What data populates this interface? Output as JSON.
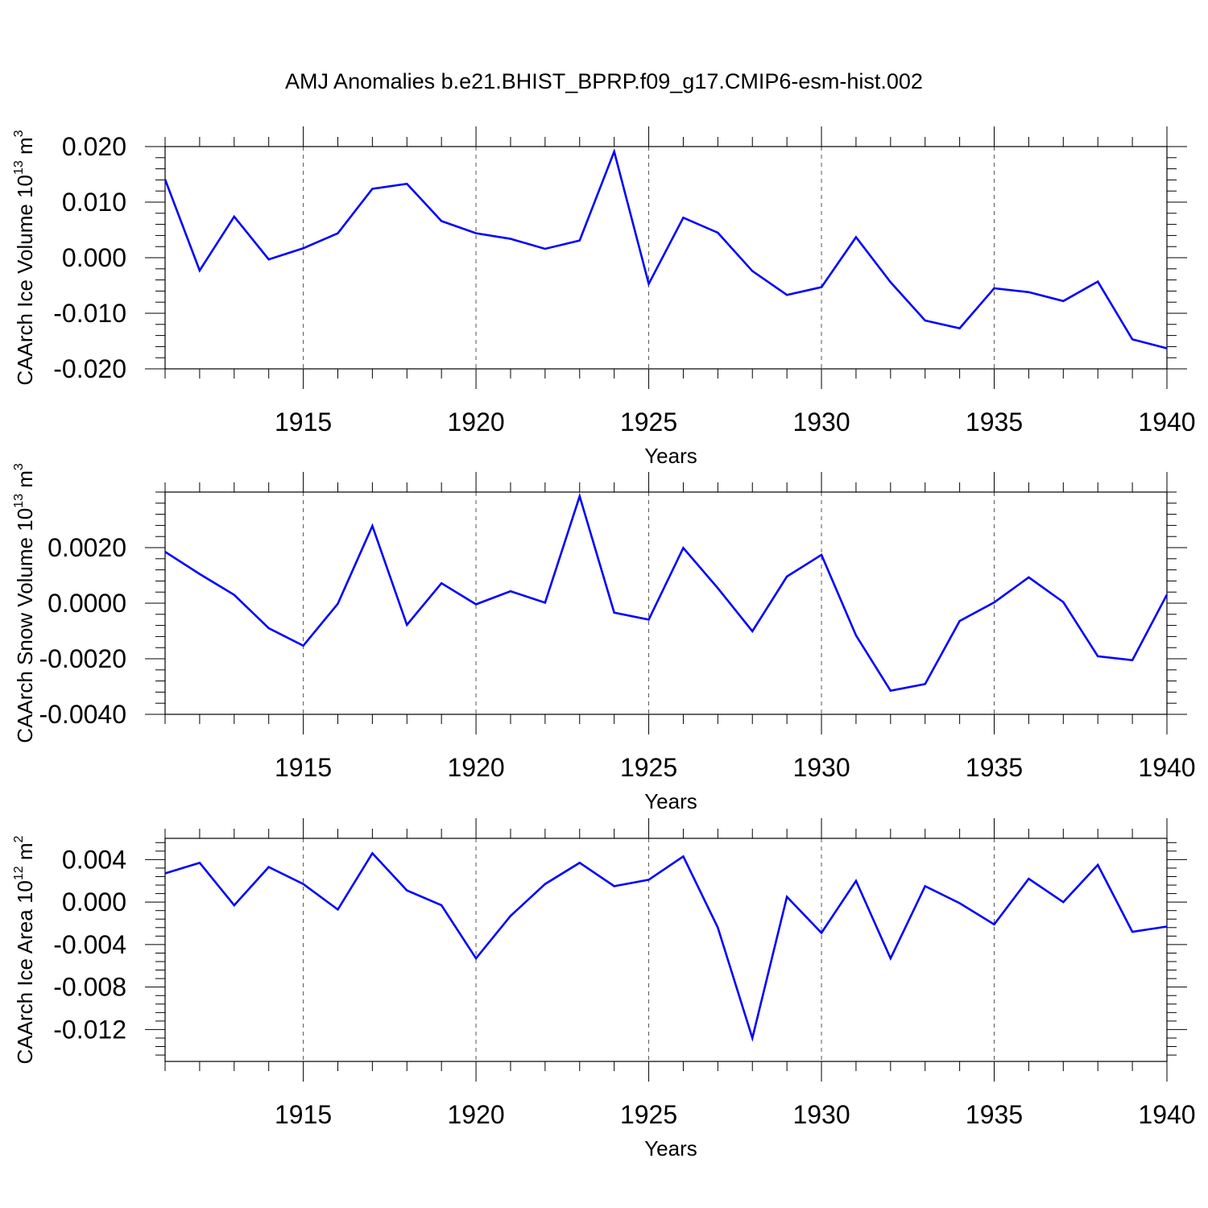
{
  "title": "AMJ Anomalies b.e21.BHIST_BPRP.f09_g17.CMIP6-esm-hist.002",
  "line_color": "#0000ff",
  "chart_data": [
    {
      "type": "line",
      "ylabel_main": "CAArch Ice Volume 10",
      "ylabel_exp": "13",
      "ylabel_unit": " m",
      "ylabel_unit_exp": "3",
      "xlabel": "Years",
      "xlim": [
        1911,
        1940
      ],
      "ylim": [
        -0.02,
        0.02
      ],
      "xticks": [
        "1915",
        "1920",
        "1925",
        "1930",
        "1935",
        "1940"
      ],
      "yticks": [
        "0.020",
        "0.010",
        "0.000",
        "-0.010",
        "-0.020"
      ],
      "grid": "vertical dashed at major x ticks",
      "series": [
        {
          "x": [
            1911,
            1912,
            1913,
            1914,
            1915,
            1916,
            1917,
            1918,
            1919,
            1920,
            1921,
            1922,
            1923,
            1924,
            1925,
            1926,
            1927,
            1928,
            1929,
            1930,
            1931,
            1932,
            1933,
            1934,
            1935,
            1936,
            1937,
            1938,
            1939,
            1940
          ],
          "values": [
            0.0141,
            -0.0023,
            0.0074,
            -0.0003,
            0.0017,
            0.0044,
            0.0124,
            0.0133,
            0.0066,
            0.0044,
            0.0034,
            0.0016,
            0.0031,
            0.0191,
            -0.0047,
            0.0072,
            0.0045,
            -0.0024,
            -0.0067,
            -0.0053,
            0.0037,
            -0.0044,
            -0.0113,
            -0.0127,
            -0.0055,
            -0.0062,
            -0.0078,
            -0.0043,
            -0.0147,
            -0.0163
          ]
        }
      ]
    },
    {
      "type": "line",
      "ylabel_main": "CAArch Snow Volume 10",
      "ylabel_exp": "13",
      "ylabel_unit": " m",
      "ylabel_unit_exp": "3",
      "xlabel": "Years",
      "xlim": [
        1911,
        1940
      ],
      "ylim": [
        -0.004,
        0.004
      ],
      "xticks": [
        "1915",
        "1920",
        "1925",
        "1930",
        "1935",
        "1940"
      ],
      "yticks": [
        "0.0020",
        "0.0000",
        "-0.0020",
        "-0.0040"
      ],
      "grid": "vertical dashed at major x ticks",
      "series": [
        {
          "x": [
            1911,
            1912,
            1913,
            1914,
            1915,
            1916,
            1917,
            1918,
            1919,
            1920,
            1921,
            1922,
            1923,
            1924,
            1925,
            1926,
            1927,
            1928,
            1929,
            1930,
            1931,
            1932,
            1933,
            1934,
            1935,
            1936,
            1937,
            1938,
            1939,
            1940
          ],
          "values": [
            0.00185,
            0.00105,
            0.0003,
            -0.0009,
            -0.00153,
            -2e-05,
            0.00278,
            -0.00078,
            0.00072,
            -4e-05,
            0.00043,
            2e-05,
            0.00385,
            -0.00034,
            -0.00059,
            0.00199,
            0.00054,
            -0.00101,
            0.00096,
            0.00174,
            -0.00116,
            -0.00315,
            -0.00291,
            -0.00064,
            3e-05,
            0.00093,
            4e-05,
            -0.00191,
            -0.00205,
            0.00031
          ]
        }
      ]
    },
    {
      "type": "line",
      "ylabel_main": "CAArch Ice Area 10",
      "ylabel_exp": "12",
      "ylabel_unit": " m",
      "ylabel_unit_exp": "2",
      "xlabel": "Years",
      "xlim": [
        1911,
        1940
      ],
      "ylim": [
        -0.015,
        0.006
      ],
      "xticks": [
        "1915",
        "1920",
        "1925",
        "1930",
        "1935",
        "1940"
      ],
      "yticks": [
        "0.004",
        "0.000",
        "-0.004",
        "-0.008",
        "-0.012"
      ],
      "grid": "vertical dashed at major x ticks",
      "series": [
        {
          "x": [
            1911,
            1912,
            1913,
            1914,
            1915,
            1916,
            1917,
            1918,
            1919,
            1920,
            1921,
            1922,
            1923,
            1924,
            1925,
            1926,
            1927,
            1928,
            1929,
            1930,
            1931,
            1932,
            1933,
            1934,
            1935,
            1936,
            1937,
            1938,
            1939,
            1940
          ],
          "values": [
            0.0027,
            0.0037,
            -0.0003,
            0.0033,
            0.0017,
            -0.0007,
            0.0046,
            0.0011,
            -0.0003,
            -0.0053,
            -0.0013,
            0.0017,
            0.0037,
            0.0015,
            0.0021,
            0.0043,
            -0.0024,
            -0.0128,
            0.0005,
            -0.0029,
            0.002,
            -0.0053,
            0.0015,
            -0.0001,
            -0.0021,
            0.0022,
            0.0,
            0.0035,
            -0.0028,
            -0.0023
          ]
        }
      ]
    }
  ]
}
